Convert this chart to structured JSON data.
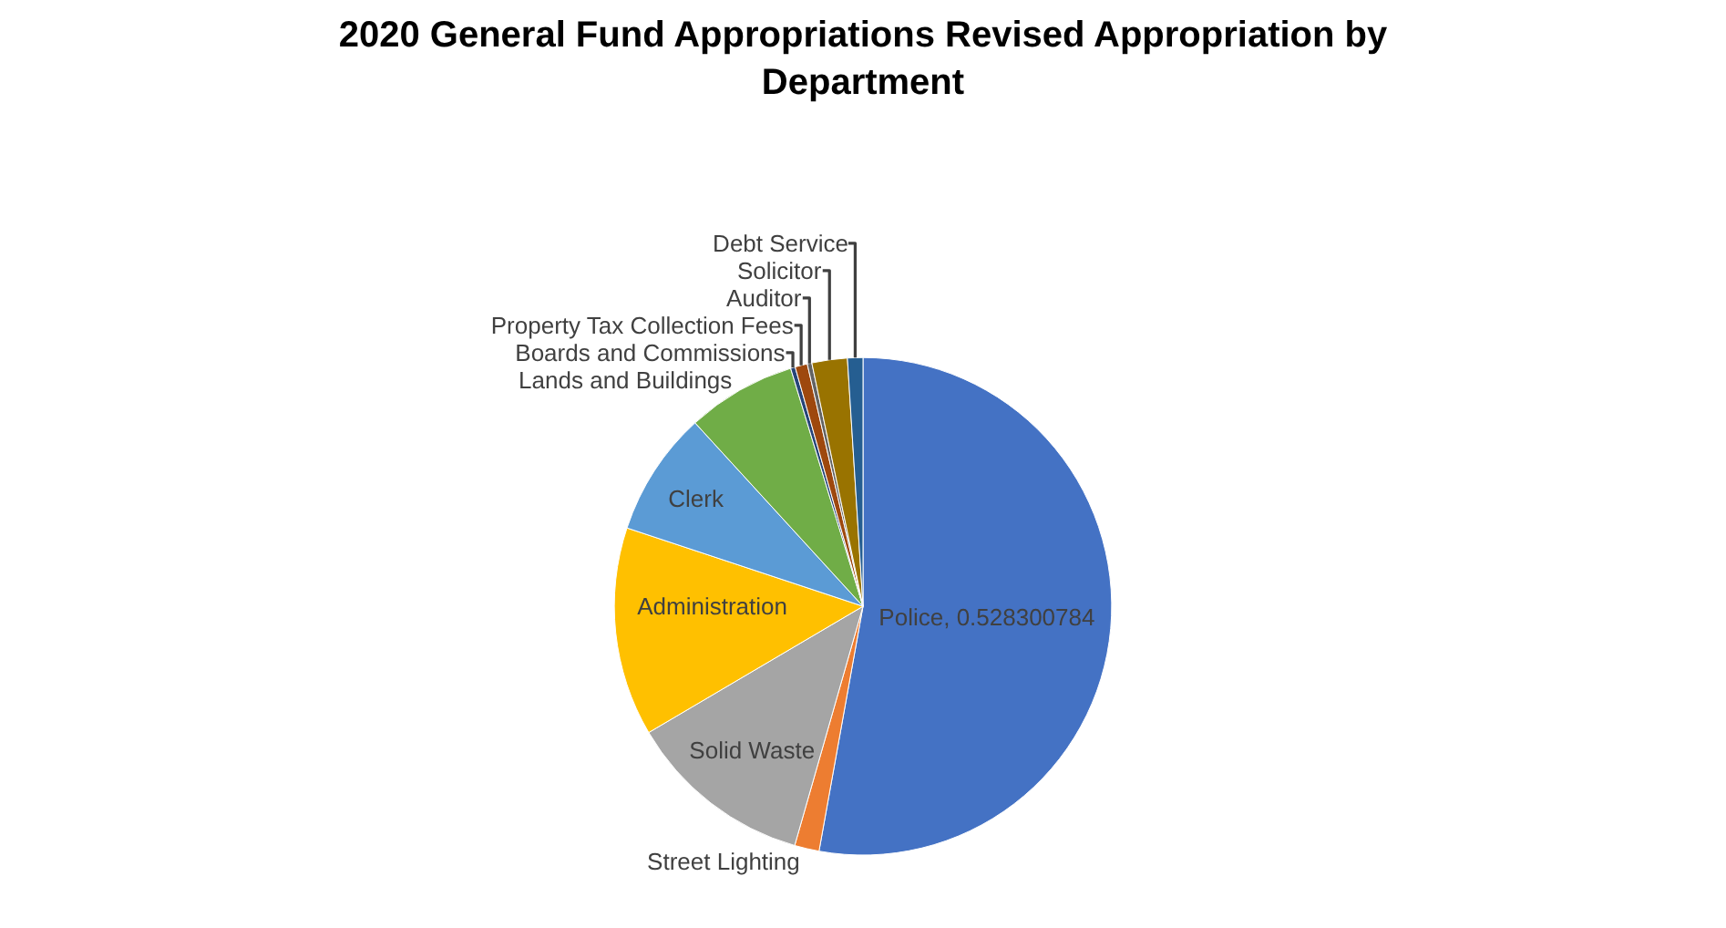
{
  "chart_data": {
    "type": "pie",
    "title": "2020 General Fund Appropriations Revised Appropriation by Department",
    "categories": [
      "Police",
      "Street Lighting",
      "Solid Waste",
      "Administration",
      "Clerk",
      "Lands and Buildings",
      "Boards and Commissions",
      "Property Tax Collection Fees",
      "Auditor",
      "Solicitor",
      "Debt Service"
    ],
    "values": [
      0.528300784,
      0.016,
      0.121,
      0.1357,
      0.081,
      0.071,
      0.003,
      0.008,
      0.003,
      0.023,
      0.01
    ],
    "value_labels": [
      "0.528300784",
      null,
      null,
      null,
      null,
      null,
      null,
      null,
      null,
      null,
      null
    ],
    "colors": [
      "#4472c4",
      "#ed7d31",
      "#a5a5a5",
      "#ffc000",
      "#5b9bd5",
      "#70ad47",
      "#264478",
      "#9e480e",
      "#636363",
      "#997300",
      "#255e91"
    ]
  }
}
